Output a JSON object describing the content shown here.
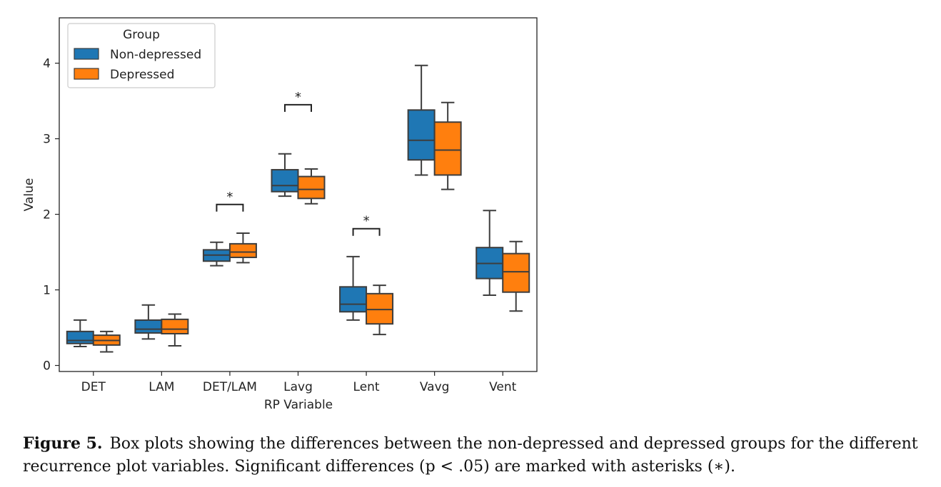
{
  "chart_data": {
    "type": "box",
    "xlabel": "RP Variable",
    "ylabel": "Value",
    "ylim": [
      -0.08,
      4.6
    ],
    "yticks": [
      0,
      1,
      2,
      3,
      4
    ],
    "categories": [
      "DET",
      "LAM",
      "DET/LAM",
      "Lavg",
      "Lent",
      "Vavg",
      "Vent"
    ],
    "legend": {
      "title": "Group",
      "position": "top-left"
    },
    "series": [
      {
        "name": "Non-depressed",
        "color": "#1f77b4",
        "boxes": [
          {
            "min": 0.25,
            "q1": 0.29,
            "median": 0.33,
            "q3": 0.45,
            "max": 0.6
          },
          {
            "min": 0.35,
            "q1": 0.43,
            "median": 0.48,
            "q3": 0.6,
            "max": 0.8
          },
          {
            "min": 1.32,
            "q1": 1.38,
            "median": 1.46,
            "q3": 1.53,
            "max": 1.63
          },
          {
            "min": 2.24,
            "q1": 2.3,
            "median": 2.38,
            "q3": 2.59,
            "max": 2.8
          },
          {
            "min": 0.6,
            "q1": 0.71,
            "median": 0.81,
            "q3": 1.04,
            "max": 1.44
          },
          {
            "min": 2.52,
            "q1": 2.72,
            "median": 2.98,
            "q3": 3.38,
            "max": 3.97
          },
          {
            "min": 0.93,
            "q1": 1.15,
            "median": 1.35,
            "q3": 1.56,
            "max": 2.05
          }
        ]
      },
      {
        "name": "Depressed",
        "color": "#ff7f0e",
        "boxes": [
          {
            "min": 0.18,
            "q1": 0.27,
            "median": 0.33,
            "q3": 0.4,
            "max": 0.45
          },
          {
            "min": 0.26,
            "q1": 0.42,
            "median": 0.48,
            "q3": 0.61,
            "max": 0.68
          },
          {
            "min": 1.36,
            "q1": 1.43,
            "median": 1.5,
            "q3": 1.61,
            "max": 1.75
          },
          {
            "min": 2.14,
            "q1": 2.21,
            "median": 2.33,
            "q3": 2.5,
            "max": 2.6
          },
          {
            "min": 0.41,
            "q1": 0.55,
            "median": 0.74,
            "q3": 0.95,
            "max": 1.06
          },
          {
            "min": 2.33,
            "q1": 2.52,
            "median": 2.85,
            "q3": 3.22,
            "max": 3.48
          },
          {
            "min": 0.72,
            "q1": 0.97,
            "median": 1.24,
            "q3": 1.48,
            "max": 1.64
          }
        ]
      }
    ],
    "annotations": [
      {
        "category": "DET/LAM",
        "text": "*",
        "bracket_y": 2.13
      },
      {
        "category": "Lavg",
        "text": "*",
        "bracket_y": 3.45
      },
      {
        "category": "Lent",
        "text": "*",
        "bracket_y": 1.81
      }
    ]
  },
  "caption": {
    "label": "Figure 5.",
    "text": "Box plots showing the differences between the non-depressed and depressed groups for the different recurrence plot variables. Significant differences (p < .05) are marked with asterisks (∗)."
  }
}
